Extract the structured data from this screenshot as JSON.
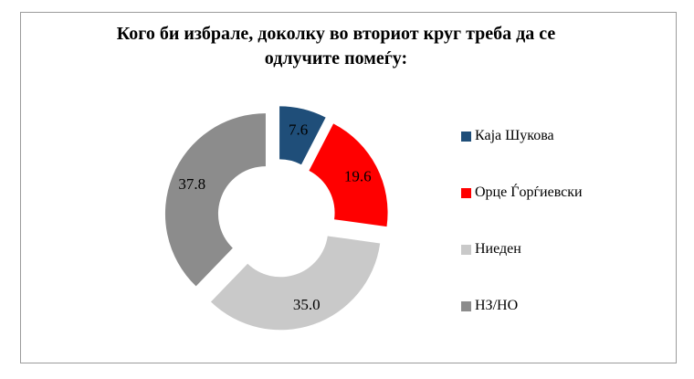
{
  "chart_data": {
    "type": "pie",
    "subtype": "exploded_donut",
    "title": "Кого би избрале, доколку во вториот круг треба да се одлучите помеѓу:",
    "categories": [
      "Каја Шукова",
      "Орце Ѓорѓиевски",
      "Ниеден",
      "НЗ/НО"
    ],
    "values": [
      7.6,
      19.6,
      35.0,
      37.8
    ],
    "data_labels": [
      "7.6",
      "19.6",
      "35.0",
      "37.8"
    ],
    "colors": [
      "#1f4e79",
      "#ff0000",
      "#c9c9c9",
      "#8c8c8c"
    ],
    "label_color": "#000000",
    "legend_position": "right",
    "start_angle_deg": 0,
    "direction": "clockwise",
    "donut_hole_ratio": 0.47,
    "exploded": true,
    "background": "#ffffff",
    "border_color": "#9b9b9b"
  }
}
